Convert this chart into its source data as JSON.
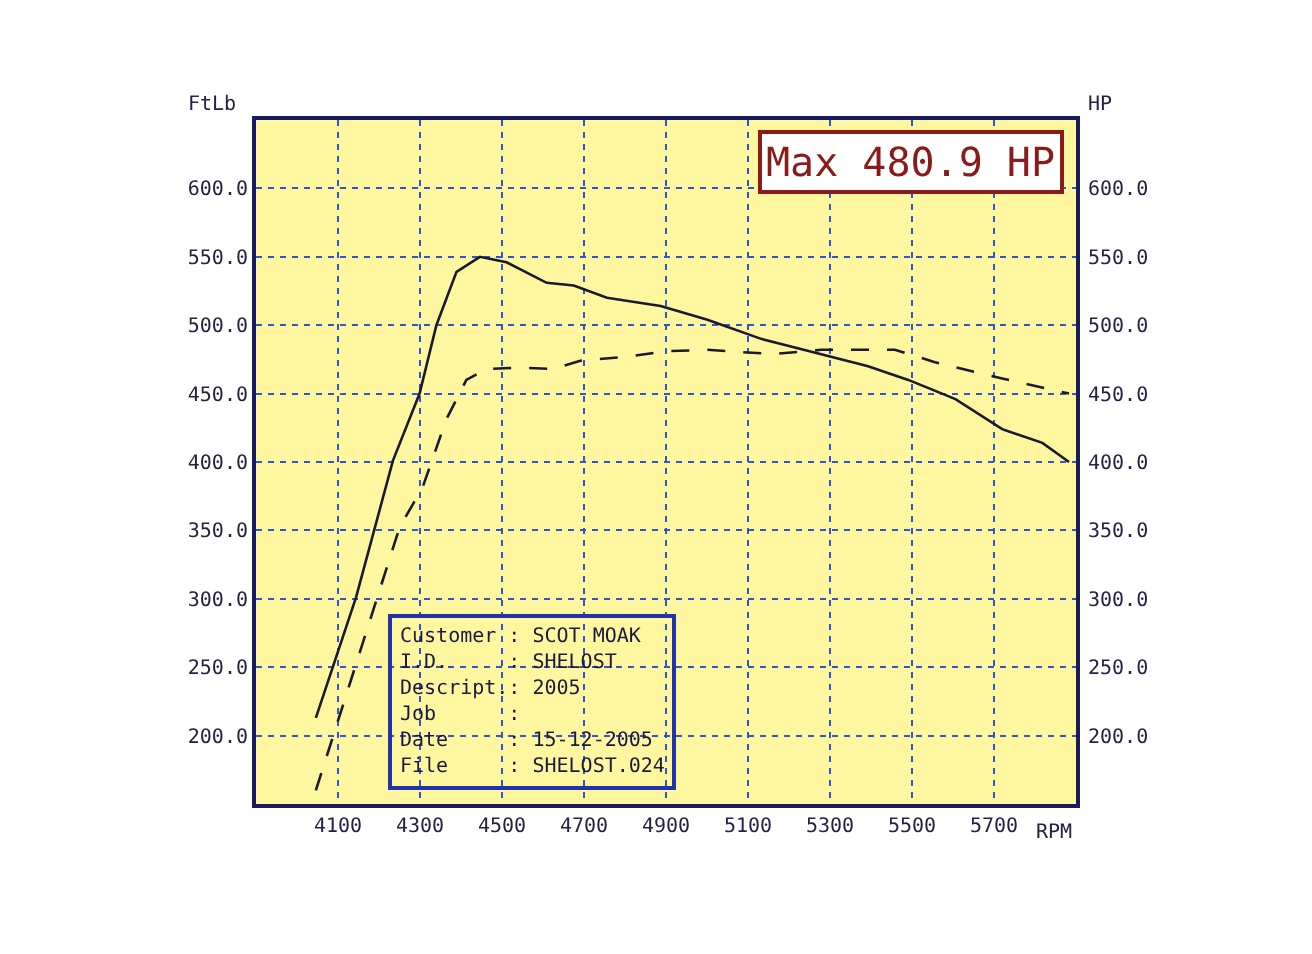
{
  "chart_data": {
    "type": "line",
    "xlabel": "RPM",
    "ylabel": "FtLb",
    "y2label": "HP",
    "annotations": [
      "Max 480.9 HP",
      "Customer : SCOT MOAK",
      "I.D.     : SHELOST",
      "Descript.: 2005",
      "Job      :",
      "Date     : 15-12-2005",
      "File     : SHELOST.024"
    ],
    "xlim": [
      3900,
      5900
    ],
    "xticks": [
      4100,
      4300,
      4500,
      4700,
      4900,
      5100,
      5300,
      5500,
      5700
    ],
    "ylim": [
      150,
      650
    ],
    "yticks": [
      {
        "value": 200,
        "label": "200.0"
      },
      {
        "value": 250,
        "label": "250.0"
      },
      {
        "value": 300,
        "label": "300.0"
      },
      {
        "value": 350,
        "label": "350.0"
      },
      {
        "value": 400,
        "label": "400.0"
      },
      {
        "value": 450,
        "label": "450.0"
      },
      {
        "value": 500,
        "label": "500.0"
      },
      {
        "value": 550,
        "label": "550.0"
      },
      {
        "value": 600,
        "label": "600.0"
      }
    ],
    "y2lim": [
      150,
      650
    ],
    "y2ticks": [
      {
        "value": 200,
        "label": "200.0"
      },
      {
        "value": 250,
        "label": "250.0"
      },
      {
        "value": 300,
        "label": "300.0"
      },
      {
        "value": 350,
        "label": "350.0"
      },
      {
        "value": 400,
        "label": "400.0"
      },
      {
        "value": 450,
        "label": "450.0"
      },
      {
        "value": 500,
        "label": "500.0"
      },
      {
        "value": 550,
        "label": "550.0"
      },
      {
        "value": 600,
        "label": "600.0"
      }
    ],
    "grid": true,
    "marker": "none",
    "series": [
      {
        "color": "#1a1a2e",
        "line_style": "solid",
        "x": [
          4046,
          4144,
          4234,
          4299,
          4340,
          4389,
          4446,
          4511,
          4609,
          4675,
          4756,
          4887,
          5001,
          5132,
          5262,
          5393,
          5491,
          5606,
          5720,
          5818,
          5883
        ],
        "values": [
          213,
          301,
          401,
          450,
          500,
          539,
          550,
          546,
          531,
          529,
          520,
          514,
          504,
          490,
          480,
          470,
          460,
          446,
          424,
          414,
          400
        ]
      },
      {
        "color": "#1a1a2e",
        "line_style": "dashed",
        "axis": "y2",
        "x": [
          4046,
          4250,
          4307,
          4364,
          4413,
          4462,
          4544,
          4626,
          4691,
          4805,
          4903,
          5001,
          5099,
          5165,
          5279,
          5458,
          5556,
          5720,
          5883
        ],
        "values": [
          160,
          352,
          382,
          431,
          460,
          468,
          469,
          468,
          474,
          477,
          481,
          482,
          480,
          479,
          482,
          482,
          473,
          461,
          450
        ]
      }
    ]
  }
}
